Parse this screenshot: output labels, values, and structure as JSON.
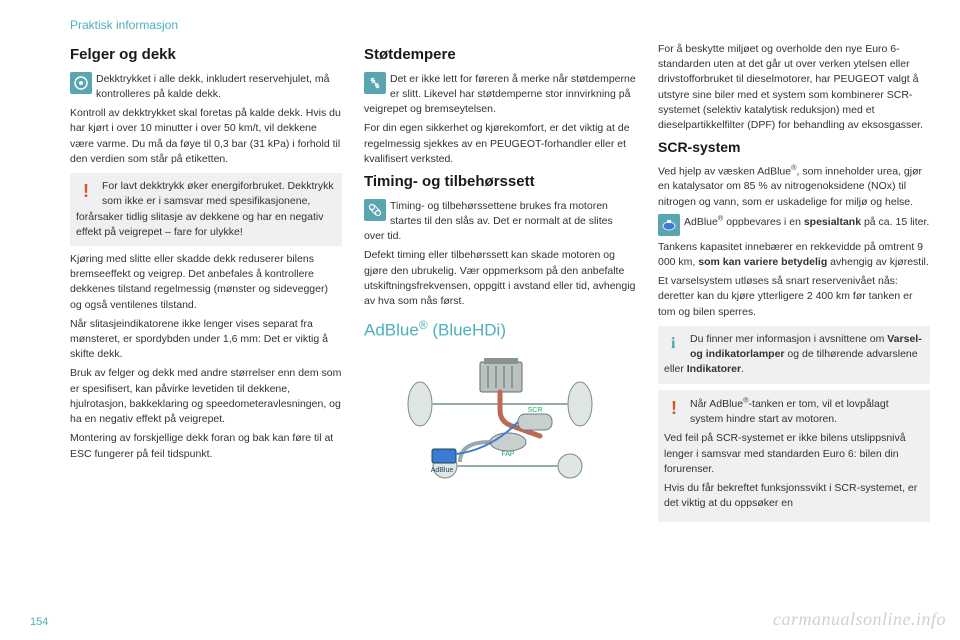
{
  "header": "Praktisk informasjon",
  "pageNumber": "154",
  "watermark": "carmanualsonline.info",
  "col1": {
    "h1": "Felger og dekk",
    "intro": "Dekktrykket i alle dekk, inkludert reservehjulet, må kontrolleres på kalde dekk.",
    "p1": "Kontroll av dekktrykket skal foretas på kalde dekk. Hvis du har kjørt i over 10 minutter i over 50 km/t, vil dekkene være varme. Du må da føye til 0,3 bar (31 kPa) i forhold til den verdien som står på etiketten.",
    "warn1": "For lavt dekktrykk øker energiforbruket. Dekktrykk som ikke er i samsvar med spesifikasjonene, forårsaker tidlig slitasje av dekkene og har en negativ effekt på veigrepet – fare for ulykke!",
    "p2": "Kjøring med slitte eller skadde dekk reduserer bilens bremseeffekt og veigrep. Det anbefales å kontrollere dekkenes tilstand regelmessig (mønster og sidevegger) og også ventilenes tilstand.",
    "p3": "Når slitasjeindikatorene ikke lenger vises separat fra mønsteret, er spordybden under 1,6 mm: Det er viktig å skifte dekk.",
    "p4": "Bruk av felger og dekk med andre størrelser enn dem som er spesifisert, kan påvirke levetiden til dekkene, hjulrotasjon, bakkeklaring og speedometeravlesningen, og ha en negativ effekt på veigrepet.",
    "p5": "Montering av forskjellige dekk foran og bak kan føre til at ESC fungerer på feil tidspunkt."
  },
  "col2": {
    "h1": "Støtdempere",
    "intro": "Det er ikke lett for føreren å merke når støtdemperne er slitt. Likevel har støtdemperne stor innvirkning på veigrepet og bremseytelsen.",
    "p1": "For din egen sikkerhet og kjørekomfort, er det viktig at de regelmessig sjekkes av en PEUGEOT-forhandler eller et kvalifisert verksted.",
    "h2": "Timing- og tilbehørssett",
    "intro2": "Timing- og tilbehørssettene brukes fra motoren startes til den slås av. Det er normalt at de slites over tid.",
    "p2": "Defekt timing eller tilbehørssett kan skade motoren og gjøre den ubrukelig. Vær oppmerksom på den anbefalte utskiftningsfrekvensen, oppgitt i avstand eller tid, avhengig av hva som nås først.",
    "h3_html": "AdBlue<sup>®</sup> (BlueHDi)",
    "diagram": {
      "labels": {
        "scr": "SCR",
        "fap": "FAP",
        "adblue": "AdBlue"
      }
    }
  },
  "col3": {
    "p1": "For å beskytte miljøet og overholde den nye Euro 6-standarden uten at det går ut over verken ytelsen eller drivstofforbruket til dieselmotorer, har PEUGEOT valgt å utstyre sine biler med et system som kombinerer SCR-systemet (selektiv katalytisk reduksjon) med et dieselpartikkelfilter (DPF) for behandling av eksosgasser.",
    "h1": "SCR-system",
    "p2_html": "Ved hjelp av væsken AdBlue<sup>®</sup>, som inneholder urea, gjør en katalysator om 85 % av nitrogenoksidene (NOx) til nitrogen og vann, som er uskadelige for miljø og helse.",
    "intro_html": "AdBlue<sup>®</sup> oppbevares i en <b>spesialtank</b> på ca. 15 liter.",
    "p3_html": "Tankens kapasitet innebærer en rekkevidde på omtrent 9 000 km, <b>som kan variere betydelig</b> avhengig av kjørestil.",
    "p4": "Et varselsystem utløses så snart reservenivået nås: deretter kan du kjøre ytterligere 2 400 km før tanken er tom og bilen sperres.",
    "info1_html": "Du finner mer informasjon i avsnittene om <b>Varsel- og indikatorlamper</b> og de tilhørende advarslene eller <b>Indikatorer</b>.",
    "warn1_html": "Når AdBlue<sup>®</sup>-tanken er tom, vil et lovpålagt system hindre start av motoren.",
    "warn1b": "Ved feil på SCR-systemet er ikke bilens utslippsnivå lenger i samsvar med standarden Euro 6: bilen din forurenser.",
    "warn1c": "Hvis du får bekreftet funksjonssvikt i SCR-systemet, er det viktig at du oppsøker en"
  },
  "colors": {
    "accent": "#4db0b8",
    "warn": "#d9531e",
    "noticeBg": "#eef0f1",
    "iconBg": "#5aa6b0"
  }
}
